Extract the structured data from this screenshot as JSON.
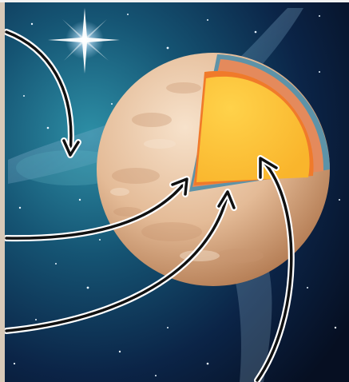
{
  "figure": {
    "subject": "planet-cutaway",
    "colors": {
      "space_dark": "#0a1a33",
      "space_glow": "#1f6f8f",
      "nebula": "#8fb8d6",
      "surface_light": "#f0d6bc",
      "surface_shadow": "#b97f56",
      "crust": "#5d93a8",
      "outer_core": "#e48a5c",
      "mantle_band": "#f07a2a",
      "inner_core": "#fcc23a",
      "arrow_fill": "#111111",
      "arrow_outline": "#ffffff"
    },
    "arrows": [
      {
        "id": "arrow-space",
        "target": "space"
      },
      {
        "id": "arrow-crust",
        "target": "crust"
      },
      {
        "id": "arrow-mantle",
        "target": "mantle"
      },
      {
        "id": "arrow-core",
        "target": "core"
      }
    ]
  }
}
